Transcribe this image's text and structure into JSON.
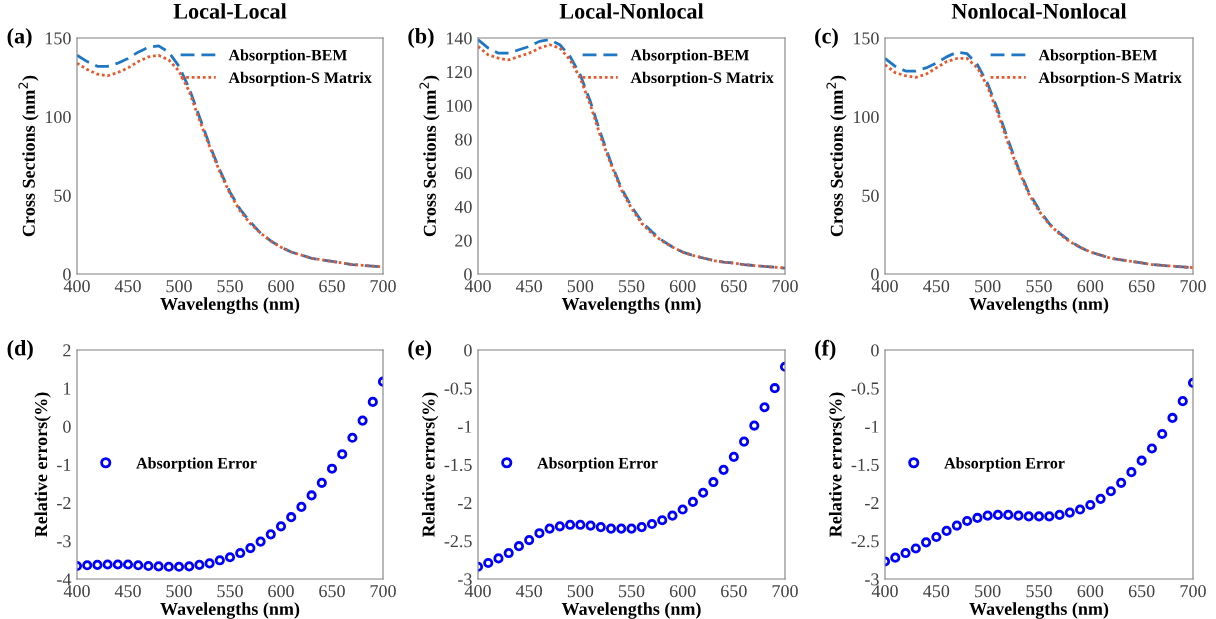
{
  "chart_data": [
    {
      "type": "line",
      "title": "Local-Local",
      "annotations": [
        "(a)"
      ],
      "xlabel": "Wavelengths (nm)",
      "ylabel": "Cross Sections (nm$^{2}$)",
      "xlim": [
        400,
        700
      ],
      "xticks": [
        400,
        450,
        500,
        550,
        600,
        650,
        700
      ],
      "ylim": [
        0,
        150
      ],
      "yticks": [
        0,
        50,
        100,
        150
      ],
      "legend": "top right",
      "grid": false,
      "x": [
        400,
        410,
        420,
        430,
        440,
        450,
        460,
        470,
        480,
        490,
        500,
        510,
        520,
        530,
        540,
        550,
        560,
        570,
        580,
        590,
        600,
        610,
        620,
        630,
        640,
        650,
        660,
        670,
        680,
        690,
        700
      ],
      "series": [
        {
          "name": "Absorption-BEM",
          "color": "#1f77c4",
          "line_style": "dashed",
          "values": [
            139,
            135,
            132,
            132,
            134,
            137,
            141,
            144,
            145,
            141,
            132,
            118,
            100,
            82,
            66,
            52,
            41,
            33,
            26,
            21,
            17,
            14,
            12,
            10,
            9,
            8,
            7,
            6,
            5.5,
            5,
            4.5
          ]
        },
        {
          "name": "Absorption-S Matrix",
          "color": "#e8582a",
          "line_style": "dotted",
          "values": [
            134,
            130,
            127,
            126,
            128,
            131,
            135,
            138,
            139,
            136,
            129,
            116,
            98,
            81,
            65,
            51,
            40,
            32,
            26,
            21,
            17,
            14,
            12,
            10,
            9,
            8,
            7,
            6,
            5.5,
            5,
            4.5
          ]
        }
      ]
    },
    {
      "type": "line",
      "title": "Local-Nonlocal",
      "annotations": [
        "(b)"
      ],
      "xlabel": "Wavelengths (nm)",
      "ylabel": "Cross Sections (nm$^{2}$)",
      "xlim": [
        400,
        700
      ],
      "xticks": [
        400,
        450,
        500,
        550,
        600,
        650,
        700
      ],
      "ylim": [
        0,
        140
      ],
      "yticks": [
        0,
        20,
        40,
        60,
        80,
        100,
        120,
        140
      ],
      "legend": "top right",
      "grid": false,
      "x": [
        400,
        410,
        420,
        430,
        440,
        450,
        460,
        470,
        480,
        490,
        500,
        510,
        520,
        530,
        540,
        550,
        560,
        570,
        580,
        590,
        600,
        610,
        620,
        630,
        640,
        650,
        660,
        670,
        680,
        690,
        700
      ],
      "series": [
        {
          "name": "Absorption-BEM",
          "color": "#1f77c4",
          "line_style": "dashed",
          "values": [
            139,
            134,
            131,
            131,
            133,
            135,
            138,
            139,
            136,
            129,
            118,
            102,
            83,
            66,
            51,
            40,
            31,
            25,
            20,
            16,
            13,
            11,
            9.5,
            8,
            7,
            6.5,
            5.5,
            5,
            4.5,
            4,
            3.5
          ]
        },
        {
          "name": "Absorption-S Matrix",
          "color": "#e8582a",
          "line_style": "dotted",
          "values": [
            135,
            130,
            128,
            127,
            129,
            131,
            134,
            136,
            134,
            127,
            116,
            100,
            81,
            65,
            50,
            39,
            30,
            24,
            19.5,
            16,
            13,
            11,
            9.5,
            8,
            7,
            6.5,
            5.5,
            5,
            4.5,
            4,
            3.5
          ]
        }
      ]
    },
    {
      "type": "line",
      "title": "Nonlocal-Nonlocal",
      "annotations": [
        "(c)"
      ],
      "xlabel": "Wavelengths (nm)",
      "ylabel": "Cross Sections (nm$^{2}$)",
      "xlim": [
        400,
        700
      ],
      "xticks": [
        400,
        450,
        500,
        550,
        600,
        650,
        700
      ],
      "ylim": [
        0,
        150
      ],
      "yticks": [
        0,
        50,
        100,
        150
      ],
      "legend": "top right",
      "grid": false,
      "x": [
        400,
        410,
        420,
        430,
        440,
        450,
        460,
        470,
        480,
        490,
        500,
        510,
        520,
        530,
        540,
        550,
        560,
        570,
        580,
        590,
        600,
        610,
        620,
        630,
        640,
        650,
        660,
        670,
        680,
        690,
        700
      ],
      "series": [
        {
          "name": "Absorption-BEM",
          "color": "#1f77c4",
          "line_style": "dashed",
          "values": [
            137,
            132,
            129,
            129,
            131,
            134,
            138,
            141,
            140,
            133,
            121,
            104,
            85,
            67,
            52,
            41,
            32,
            26,
            21,
            17,
            14,
            12,
            10,
            9,
            8,
            7,
            6,
            5.5,
            5,
            4.5,
            4
          ]
        },
        {
          "name": "Absorption-S Matrix",
          "color": "#e8582a",
          "line_style": "dotted",
          "values": [
            133,
            128,
            126,
            125,
            127,
            131,
            135,
            137,
            137,
            131,
            119,
            102,
            83,
            66,
            51,
            40,
            31.5,
            25.5,
            20.5,
            17,
            14,
            12,
            10,
            9,
            8,
            7,
            6,
            5.5,
            5,
            4.5,
            4
          ]
        }
      ]
    },
    {
      "type": "scatter",
      "annotations": [
        "(d)"
      ],
      "xlabel": "Wavelengths (nm)",
      "ylabel": "Relative errors(%)",
      "xlim": [
        400,
        700
      ],
      "xticks": [
        400,
        450,
        500,
        550,
        600,
        650,
        700
      ],
      "ylim": [
        -4,
        2
      ],
      "yticks": [
        -4,
        -3,
        -2,
        -1,
        0,
        1,
        2
      ],
      "legend": "center left",
      "grid": false,
      "marker": "circle",
      "x": [
        400,
        410,
        420,
        430,
        440,
        450,
        460,
        470,
        480,
        490,
        500,
        510,
        520,
        530,
        540,
        550,
        560,
        570,
        580,
        590,
        600,
        610,
        620,
        630,
        640,
        650,
        660,
        670,
        680,
        690,
        700
      ],
      "series": [
        {
          "name": "Absorption Error",
          "color": "#0000ff",
          "values": [
            -3.66,
            -3.64,
            -3.63,
            -3.62,
            -3.62,
            -3.62,
            -3.64,
            -3.66,
            -3.67,
            -3.68,
            -3.68,
            -3.67,
            -3.63,
            -3.59,
            -3.51,
            -3.43,
            -3.32,
            -3.19,
            -3.02,
            -2.83,
            -2.62,
            -2.38,
            -2.11,
            -1.81,
            -1.48,
            -1.11,
            -0.73,
            -0.3,
            0.15,
            0.64,
            1.17
          ]
        }
      ]
    },
    {
      "type": "scatter",
      "annotations": [
        "(e)"
      ],
      "xlabel": "Wavelengths (nm)",
      "ylabel": "Relative errors(%)",
      "xlim": [
        400,
        700
      ],
      "xticks": [
        400,
        450,
        500,
        550,
        600,
        650,
        700
      ],
      "ylim": [
        -3,
        0
      ],
      "yticks": [
        -3,
        -2.5,
        -2,
        -1.5,
        -1,
        -0.5,
        0
      ],
      "legend": "center left",
      "grid": false,
      "marker": "circle",
      "x": [
        400,
        410,
        420,
        430,
        440,
        450,
        460,
        470,
        480,
        490,
        500,
        510,
        520,
        530,
        540,
        550,
        560,
        570,
        580,
        590,
        600,
        610,
        620,
        630,
        640,
        650,
        660,
        670,
        680,
        690,
        700
      ],
      "series": [
        {
          "name": "Absorption Error",
          "color": "#0000ff",
          "values": [
            -2.84,
            -2.79,
            -2.73,
            -2.66,
            -2.57,
            -2.49,
            -2.4,
            -2.34,
            -2.31,
            -2.29,
            -2.29,
            -2.3,
            -2.32,
            -2.34,
            -2.34,
            -2.34,
            -2.32,
            -2.28,
            -2.23,
            -2.17,
            -2.09,
            -1.99,
            -1.87,
            -1.73,
            -1.57,
            -1.4,
            -1.2,
            -0.99,
            -0.75,
            -0.5,
            -0.22
          ]
        }
      ]
    },
    {
      "type": "scatter",
      "annotations": [
        "(f)"
      ],
      "xlabel": "Wavelengths (nm)",
      "ylabel": "Relative errors(%)",
      "xlim": [
        400,
        700
      ],
      "xticks": [
        400,
        450,
        500,
        550,
        600,
        650,
        700
      ],
      "ylim": [
        -3,
        0
      ],
      "yticks": [
        -3,
        -2.5,
        -2,
        -1.5,
        -1,
        -0.5,
        0
      ],
      "legend": "center left",
      "grid": false,
      "marker": "circle",
      "x": [
        400,
        410,
        420,
        430,
        440,
        450,
        460,
        470,
        480,
        490,
        500,
        510,
        520,
        530,
        540,
        550,
        560,
        570,
        580,
        590,
        600,
        610,
        620,
        630,
        640,
        650,
        660,
        670,
        680,
        690,
        700
      ],
      "series": [
        {
          "name": "Absorption Error",
          "color": "#0000ff",
          "values": [
            -2.77,
            -2.72,
            -2.66,
            -2.6,
            -2.52,
            -2.45,
            -2.37,
            -2.3,
            -2.24,
            -2.2,
            -2.17,
            -2.16,
            -2.16,
            -2.17,
            -2.18,
            -2.18,
            -2.18,
            -2.16,
            -2.13,
            -2.09,
            -2.03,
            -1.95,
            -1.85,
            -1.74,
            -1.6,
            -1.45,
            -1.29,
            -1.1,
            -0.89,
            -0.67,
            -0.43
          ]
        }
      ]
    }
  ]
}
